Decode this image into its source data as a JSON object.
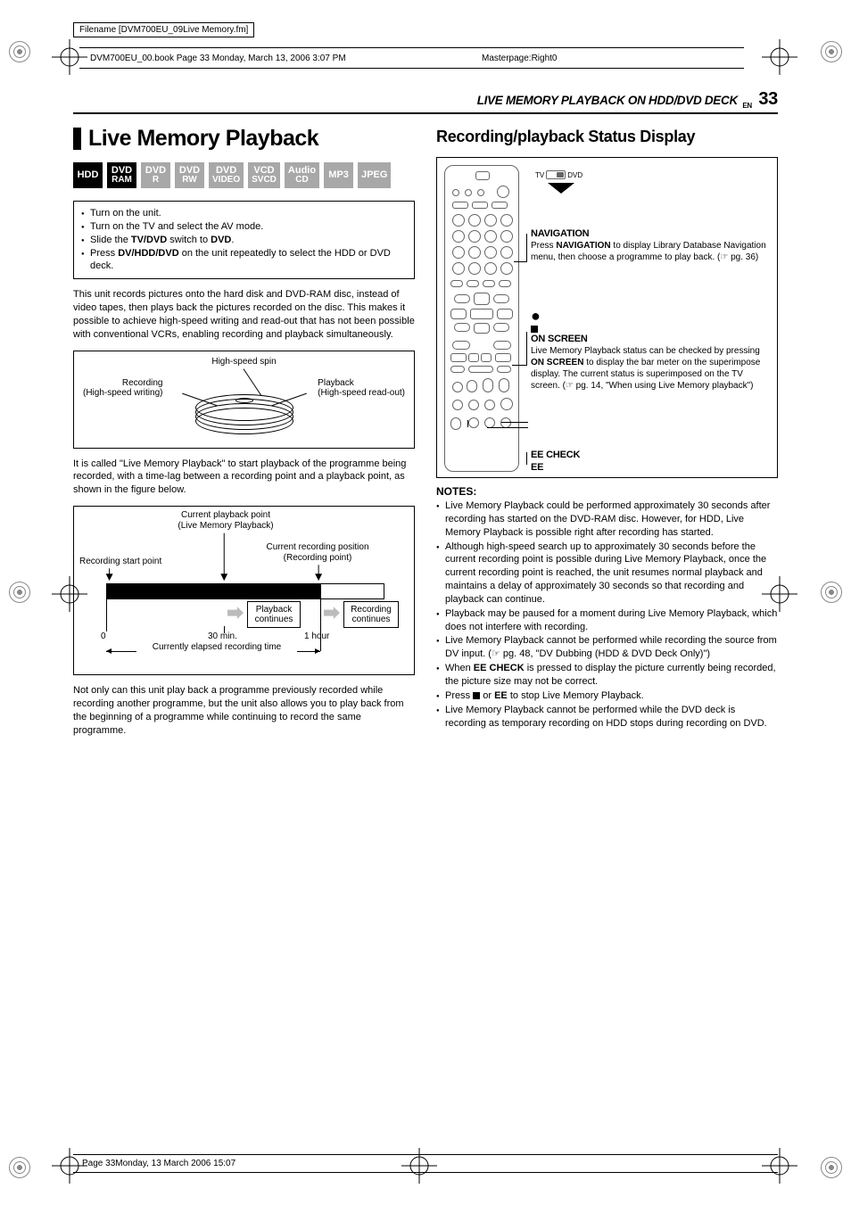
{
  "meta": {
    "filename_line": "Filename [DVM700EU_09Live Memory.fm]",
    "book_line": "DVM700EU_00.book  Page 33  Monday, March 13, 2006  3:07 PM",
    "masterpage": "Masterpage:Right0",
    "footer": "Page 33Monday, 13 March 2006  15:07"
  },
  "header": {
    "title": "LIVE MEMORY PLAYBACK ON HDD/DVD DECK",
    "lang": "EN",
    "page": "33"
  },
  "left": {
    "heading": "Live Memory Playback",
    "badges": [
      {
        "l1": "HDD",
        "dim": false
      },
      {
        "l1": "DVD",
        "l2": "RAM",
        "dim": false
      },
      {
        "l1": "DVD",
        "l2": "R",
        "dim": true
      },
      {
        "l1": "DVD",
        "l2": "RW",
        "dim": true
      },
      {
        "l1": "DVD",
        "l2": "VIDEO",
        "dim": true
      },
      {
        "l1": "VCD",
        "l2": "SVCD",
        "dim": true
      },
      {
        "l1": "Audio",
        "l2": "CD",
        "dim": true
      },
      {
        "l1": "MP3",
        "dim": true
      },
      {
        "l1": "JPEG",
        "dim": true
      }
    ],
    "instructions": [
      "Turn on the unit.",
      "Turn on the TV and select the AV mode.",
      "Slide the <b>TV/DVD</b> switch to <b>DVD</b>.",
      "Press <b>DV/HDD/DVD</b> on the unit repeatedly to select the HDD or DVD deck."
    ],
    "para1": "This unit records pictures onto the hard disk and DVD-RAM disc, instead of video tapes, then plays back the pictures recorded on the disc. This makes it possible to achieve high-speed writing and read-out that has not been possible with conventional VCRs, enabling recording and playback simultaneously.",
    "disc": {
      "top": "High-speed spin",
      "rec_t": "Recording",
      "rec_b": "(High-speed writing)",
      "play_t": "Playback",
      "play_b": "(High-speed read-out)"
    },
    "para2": "It is called \"Live Memory Playback\" to start playback of the programme being recorded, with a time-lag between a recording point and a playback point, as shown in the figure below.",
    "timeline": {
      "curplay_t": "Current playback point",
      "curplay_b": "(Live Memory Playback)",
      "start": "Recording start point",
      "currec_t": "Current recording position",
      "currec_b": "(Recording point)",
      "pb_box": "Playback continues",
      "rec_box": "Recording continues",
      "t0": "0",
      "t30": "30 min.",
      "t60": "1 hour",
      "elapsed": "Currently elapsed recording time"
    },
    "para3": "Not only can this unit play back a programme previously recorded while recording another programme, but the unit also allows you to play back from the beginning of a programme while continuing to record the same programme."
  },
  "right": {
    "heading": "Recording/playback Status Display",
    "tv": "TV",
    "dvd": "DVD",
    "nav": {
      "head": "NAVIGATION",
      "body_a": "Press ",
      "body_b": "NAVIGATION",
      "body_c": " to display Library Database Navigation menu, then choose a programme to play back. (☞ pg. 36)"
    },
    "onscreen": {
      "head": "ON SCREEN",
      "body_a": "Live Memory Playback status can be checked by pressing ",
      "body_b": "ON SCREEN",
      "body_c": " to display the bar meter on the superimpose display. The current status is superimposed on the TV screen. (☞ pg. 14, \"When using Live Memory playback\")"
    },
    "eecheck": "EE CHECK",
    "ee": "EE",
    "notes_head": "NOTES:",
    "notes": [
      "Live Memory Playback could be performed approximately 30 seconds after recording has started on the DVD-RAM disc. However, for HDD, Live Memory Playback is possible right after recording has started.",
      "Although high-speed search up to approximately 30 seconds before the current recording point is possible during Live Memory Playback, once the current recording point is reached, the unit resumes normal playback and maintains a delay of approximately 30 seconds so that recording and playback can continue.",
      "Playback may be paused for a moment during Live Memory Playback, which does not interfere with recording.",
      "Live Memory Playback cannot be performed while recording the source from DV input. (☞ pg. 48, \"DV Dubbing (HDD & DVD Deck Only)\")",
      "When <b>EE CHECK</b> is pressed to display the picture currently being recorded, the picture size may not be correct.",
      "Press <span class=\"stopsq\"></span> or <b>EE</b> to stop Live Memory Playback.",
      "Live Memory Playback cannot be performed while the DVD deck is recording as temporary recording on HDD stops during recording on DVD."
    ]
  },
  "colors": {
    "dim_badge": "#a8a8a8",
    "arrow_fill": "#bbbbbb"
  }
}
